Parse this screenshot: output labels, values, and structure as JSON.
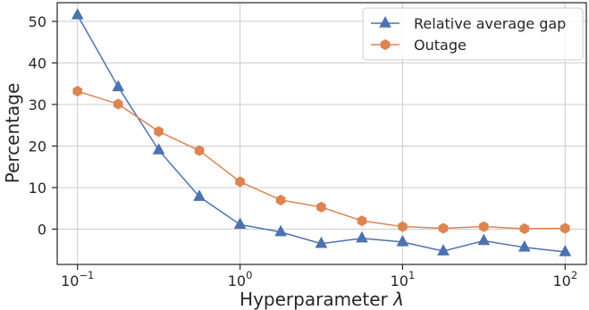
{
  "chart_data": {
    "type": "line",
    "title": "",
    "xlabel": "Hyperparameter λ",
    "ylabel": "Percentage",
    "xscale": "log",
    "xlim": [
      0.075,
      135
    ],
    "ylim": [
      -8.5,
      54.5
    ],
    "grid": true,
    "legend_position": "top-right",
    "x": [
      0.1,
      0.178,
      0.316,
      0.562,
      1,
      1.78,
      3.16,
      5.62,
      10,
      17.8,
      31.6,
      56.2,
      100
    ],
    "x_ticks": [
      {
        "value": 0.1,
        "base": "10",
        "exp": "−1"
      },
      {
        "value": 1,
        "base": "10",
        "exp": "0"
      },
      {
        "value": 10,
        "base": "10",
        "exp": "1"
      },
      {
        "value": 100,
        "base": "10",
        "exp": "2"
      }
    ],
    "y_ticks": [
      0,
      10,
      20,
      30,
      40,
      50
    ],
    "series": [
      {
        "name": "Relative average gap",
        "color": "#4c72b0",
        "marker": "triangle",
        "values": [
          51.5,
          34.2,
          19.0,
          7.8,
          1.1,
          -0.7,
          -3.5,
          -2.2,
          -3.1,
          -5.3,
          -2.8,
          -4.4,
          -5.5
        ]
      },
      {
        "name": "Outage",
        "color": "#dd8452",
        "marker": "hexagon",
        "values": [
          33.2,
          30.1,
          23.5,
          18.9,
          11.4,
          7.0,
          5.3,
          2.0,
          0.6,
          0.2,
          0.6,
          0.1,
          0.2
        ]
      }
    ]
  }
}
